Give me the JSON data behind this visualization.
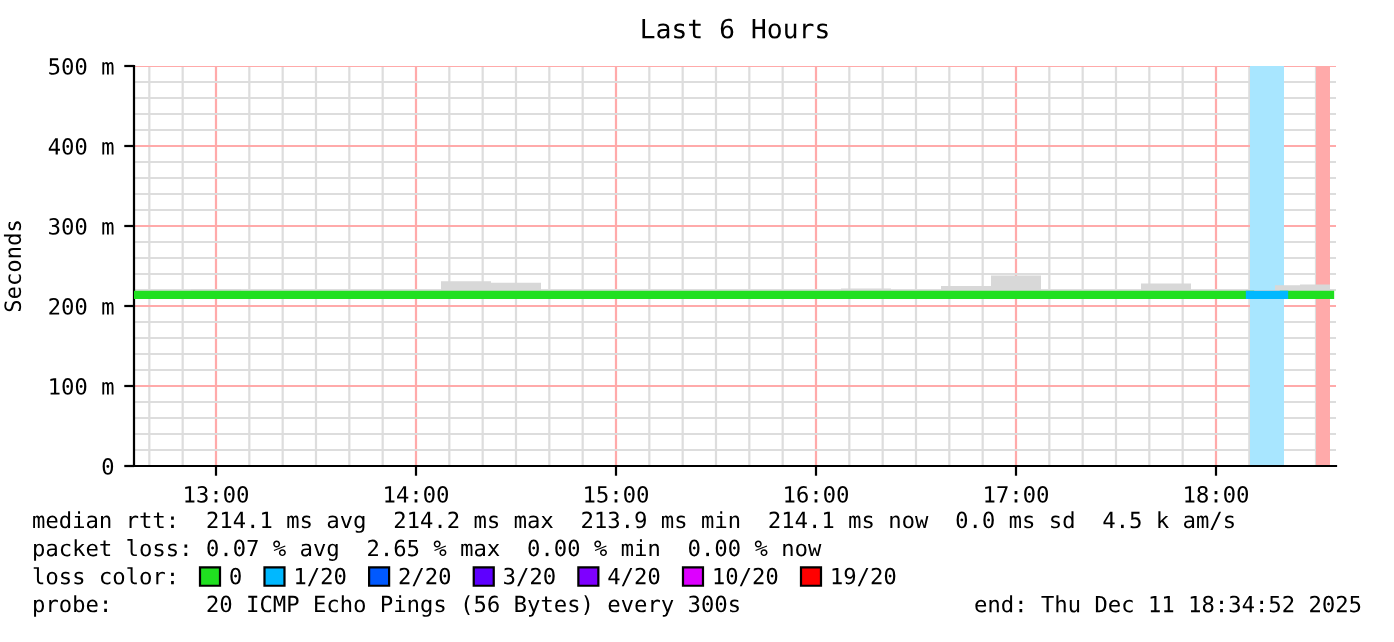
{
  "chart_data": {
    "type": "line",
    "title": "Last 6 Hours",
    "ylabel": "Seconds",
    "xlim": [
      12.59,
      18.6
    ],
    "xticks": [
      {
        "value": 13,
        "label": "13:00"
      },
      {
        "value": 14,
        "label": "14:00"
      },
      {
        "value": 15,
        "label": "15:00"
      },
      {
        "value": 16,
        "label": "16:00"
      },
      {
        "value": 17,
        "label": "17:00"
      },
      {
        "value": 18,
        "label": "18:00"
      }
    ],
    "ylim": [
      0,
      500
    ],
    "yticks": [
      0,
      {
        "value": 100,
        "label": "100 m"
      },
      {
        "value": 200,
        "label": "200 m"
      },
      {
        "value": 300,
        "label": "300 m"
      },
      {
        "value": 400,
        "label": "400 m"
      },
      {
        "value": 500,
        "label": "500 m"
      }
    ],
    "grid": true,
    "legend": "bottom",
    "legend_title": "loss color:",
    "marker": "none",
    "line_style": "solid",
    "x": [
      12.6,
      12.75,
      13.0,
      13.25,
      13.5,
      13.75,
      14.0,
      14.25,
      14.5,
      14.75,
      15.0,
      15.25,
      15.5,
      15.75,
      16.0,
      16.25,
      16.5,
      16.75,
      17.0,
      17.25,
      17.5,
      17.75,
      18.0,
      18.17,
      18.25,
      18.34,
      18.5,
      18.57
    ],
    "series": [
      {
        "name": "0",
        "color": "#20e020",
        "values": [
          214,
          214,
          214,
          214,
          214,
          214,
          214,
          214,
          214,
          214,
          214,
          214,
          214,
          214,
          214,
          214,
          214,
          214,
          214,
          214,
          214,
          214,
          214,
          214,
          null,
          214,
          214,
          214
        ],
        "lower": [
          211,
          211,
          211,
          211,
          211,
          211,
          211,
          211,
          211,
          211,
          211,
          211,
          211,
          211,
          211,
          211,
          211,
          211,
          211,
          211,
          211,
          211,
          211,
          211,
          211,
          211,
          211,
          211
        ],
        "upper": [
          217,
          217,
          221,
          217,
          218,
          217,
          216,
          231,
          229,
          218,
          217,
          218,
          217,
          217,
          217,
          222,
          220,
          225,
          238,
          219,
          218,
          228,
          220,
          220,
          220,
          226,
          227,
          227
        ]
      },
      {
        "name": "1/20",
        "color": "#00b8ff",
        "x": [
          18.17,
          18.34
        ],
        "values": [
          214,
          214
        ]
      },
      {
        "name": "2/20",
        "color": "#0059ff",
        "values": [
          null,
          null,
          null,
          null,
          null,
          null,
          null,
          null,
          null,
          null,
          null,
          null,
          null,
          null,
          null,
          null,
          null,
          null,
          null,
          null,
          null,
          null,
          null,
          null,
          null,
          null,
          null,
          null
        ]
      },
      {
        "name": "3/20",
        "color": "#5e00ff",
        "values": [
          null,
          null,
          null,
          null,
          null,
          null,
          null,
          null,
          null,
          null,
          null,
          null,
          null,
          null,
          null,
          null,
          null,
          null,
          null,
          null,
          null,
          null,
          null,
          null,
          null,
          null,
          null,
          null
        ]
      },
      {
        "name": "4/20",
        "color": "#7e00ff",
        "values": [
          null,
          null,
          null,
          null,
          null,
          null,
          null,
          null,
          null,
          null,
          null,
          null,
          null,
          null,
          null,
          null,
          null,
          null,
          null,
          null,
          null,
          null,
          null,
          null,
          null,
          null,
          null,
          null
        ]
      },
      {
        "name": "10/20",
        "color": "#dd00ff",
        "values": [
          null,
          null,
          null,
          null,
          null,
          null,
          null,
          null,
          null,
          null,
          null,
          null,
          null,
          null,
          null,
          null,
          null,
          null,
          null,
          null,
          null,
          null,
          null,
          null,
          null,
          null,
          null,
          null
        ]
      },
      {
        "name": "19/20",
        "color": "#ff0000",
        "values": [
          null,
          null,
          null,
          null,
          null,
          null,
          null,
          null,
          null,
          null,
          null,
          null,
          null,
          null,
          null,
          null,
          null,
          null,
          null,
          null,
          null,
          null,
          null,
          null,
          null,
          null,
          null,
          null
        ]
      }
    ],
    "bands": [
      {
        "axis": "x",
        "from": 18.17,
        "to": 18.34,
        "color": "#a8e6ff"
      },
      {
        "axis": "x",
        "from": 18.5,
        "to": 18.57,
        "color": "#ffaaaa"
      }
    ],
    "annotations": [
      "median rtt:  214.1 ms avg  214.2 ms max  213.9 ms min  214.1 ms now  0.0 ms sd  4.5 k am/s",
      "packet loss: 0.07 % avg  2.65 % max  0.00 % min  0.00 % now",
      "probe:       20 ICMP Echo Pings (56 Bytes) every 300s",
      "end: Thu Dec 11 18:34:52 2025"
    ]
  }
}
